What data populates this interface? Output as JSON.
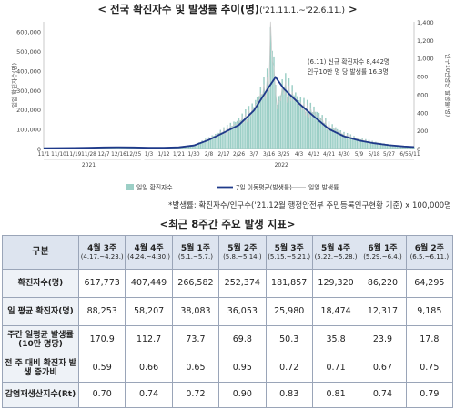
{
  "header": {
    "title": "< 전국 확진자수 및 발생률 추이(명)",
    "subtitle": "('21.11.1.~'22.6.11.)",
    "title_close": ">"
  },
  "chart_data": {
    "type": "bar",
    "annotation_lines": [
      "(6.11) 신규 확진자수 8,442명",
      "인구10만 명 당 발생률 16.3명"
    ],
    "y_ticks": [
      "0",
      "100,000",
      "200,000",
      "300,000",
      "400,000",
      "500,000",
      "600,000"
    ],
    "y2_ticks": [
      "0",
      "200",
      "400",
      "600",
      "800",
      "1,000",
      "1,200",
      "1,400"
    ],
    "ylim": [
      0,
      650000
    ],
    "y2lim": [
      0,
      1400
    ],
    "ylabel": "일일 확진자수(명)",
    "y2label": "인구10만명당 발생률(명)",
    "x_ticks": [
      "11/1",
      "11/10",
      "11/19",
      "11/28",
      "12/7",
      "12/16",
      "12/25",
      "1/3",
      "1/12",
      "1/21",
      "1/30",
      "2/8",
      "2/17",
      "2/26",
      "3/7",
      "3/16",
      "3/25",
      "4/3",
      "4/12",
      "4/21",
      "4/30",
      "5/9",
      "5/18",
      "5/27",
      "6/5",
      "6/11"
    ],
    "year_labels": [
      "2021",
      "2022"
    ],
    "legend": [
      "일일 확진자수",
      "7일 이동평균(발생률)",
      "일일 발생률"
    ],
    "series": [
      {
        "name": "일일 확진자수",
        "x": [
          "11/1",
          "11/10",
          "11/19",
          "11/28",
          "12/7",
          "12/16",
          "12/25",
          "1/3",
          "1/12",
          "1/21",
          "1/30",
          "2/8",
          "2/17",
          "2/26",
          "3/7",
          "3/16",
          "3/17",
          "3/21",
          "3/25",
          "4/3",
          "4/12",
          "4/21",
          "4/30",
          "5/9",
          "5/18",
          "5/27",
          "6/5",
          "6/11"
        ],
        "values": [
          1700,
          2400,
          3200,
          4100,
          5900,
          7400,
          6200,
          4000,
          4200,
          7600,
          17500,
          49500,
          93000,
          139000,
          210000,
          365000,
          621000,
          210000,
          340000,
          238000,
          190000,
          118000,
          73000,
          48000,
          32000,
          18000,
          10000,
          8442
        ]
      },
      {
        "name": "7일 이동평균(발생률)",
        "x": [
          "11/1",
          "11/10",
          "11/19",
          "11/28",
          "12/7",
          "12/16",
          "12/25",
          "1/3",
          "1/12",
          "1/21",
          "1/30",
          "2/8",
          "2/17",
          "2/26",
          "3/7",
          "3/16",
          "3/20",
          "3/25",
          "4/3",
          "4/12",
          "4/21",
          "4/30",
          "5/9",
          "5/18",
          "5/27",
          "6/5",
          "6/11"
        ],
        "values": [
          3.6,
          4.8,
          6.5,
          8.5,
          12.0,
          14.0,
          12.0,
          8.0,
          7.8,
          13.5,
          33,
          95,
          175,
          260,
          420,
          680,
          790,
          660,
          500,
          355,
          215,
          135,
          88,
          58,
          36,
          22,
          16.3
        ]
      }
    ]
  },
  "footnote": "*발생률: 확진자수/인구수('21.12월 행정안전부 주민등록인구현황 기준) x 100,000명",
  "indicator": {
    "title": "<최근 8주간 주요 발생 지표>",
    "header_label": "구분",
    "weeks": [
      {
        "w": "4월 3주",
        "r": "(4.17.~4.23.)"
      },
      {
        "w": "4월 4주",
        "r": "(4.24.~4.30.)"
      },
      {
        "w": "5월 1주",
        "r": "(5.1.~5.7.)"
      },
      {
        "w": "5월 2주",
        "r": "(5.8.~5.14.)"
      },
      {
        "w": "5월 3주",
        "r": "(5.15.~5.21.)"
      },
      {
        "w": "5월 4주",
        "r": "(5.22.~5.28.)"
      },
      {
        "w": "6월 1주",
        "r": "(5.29.~6.4.)"
      },
      {
        "w": "6월 2주",
        "r": "(6.5.~6.11.)"
      }
    ],
    "rows": [
      {
        "label": "확진자수(명)",
        "values": [
          "617,773",
          "407,449",
          "266,582",
          "252,374",
          "181,857",
          "129,320",
          "86,220",
          "64,295"
        ]
      },
      {
        "label": "일 평균 확진자(명)",
        "values": [
          "88,253",
          "58,207",
          "38,083",
          "36,053",
          "25,980",
          "18,474",
          "12,317",
          "9,185"
        ]
      },
      {
        "label": "주간 일평균 발생률(10만 명당)",
        "values": [
          "170.9",
          "112.7",
          "73.7",
          "69.8",
          "50.3",
          "35.8",
          "23.9",
          "17.8"
        ]
      },
      {
        "label": "전 주 대비 확진자 발생 증가비",
        "values": [
          "0.59",
          "0.66",
          "0.65",
          "0.95",
          "0.72",
          "0.71",
          "0.67",
          "0.75"
        ]
      },
      {
        "label": "감염재생산지수(Rt)",
        "values": [
          "0.70",
          "0.74",
          "0.72",
          "0.90",
          "0.83",
          "0.81",
          "0.74",
          "0.79"
        ]
      }
    ]
  }
}
